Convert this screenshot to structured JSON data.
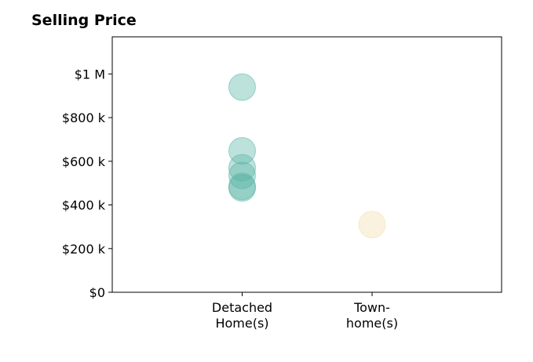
{
  "chart_data": {
    "type": "scatter",
    "title": "Selling Price",
    "xlabel": "",
    "ylabel": "",
    "categories": [
      [
        "Detached",
        "Home(s)"
      ],
      [
        "Town-",
        "home(s)"
      ]
    ],
    "ylim": [
      0,
      1170000
    ],
    "yticks": [
      {
        "value": 0,
        "label": "$0"
      },
      {
        "value": 200000,
        "label": "$200 k"
      },
      {
        "value": 400000,
        "label": "$400 k"
      },
      {
        "value": 600000,
        "label": "$600 k"
      },
      {
        "value": 800000,
        "label": "$800 k"
      },
      {
        "value": 1000000,
        "label": "$1 M"
      }
    ],
    "series": [
      {
        "category": 0,
        "color": "#5ab4a6",
        "values": [
          940000,
          648000,
          570000,
          535000,
          485000,
          478000
        ]
      },
      {
        "category": 1,
        "color": "#f3ddb0",
        "values": [
          310000
        ]
      }
    ],
    "grid": false,
    "legend": "none"
  }
}
